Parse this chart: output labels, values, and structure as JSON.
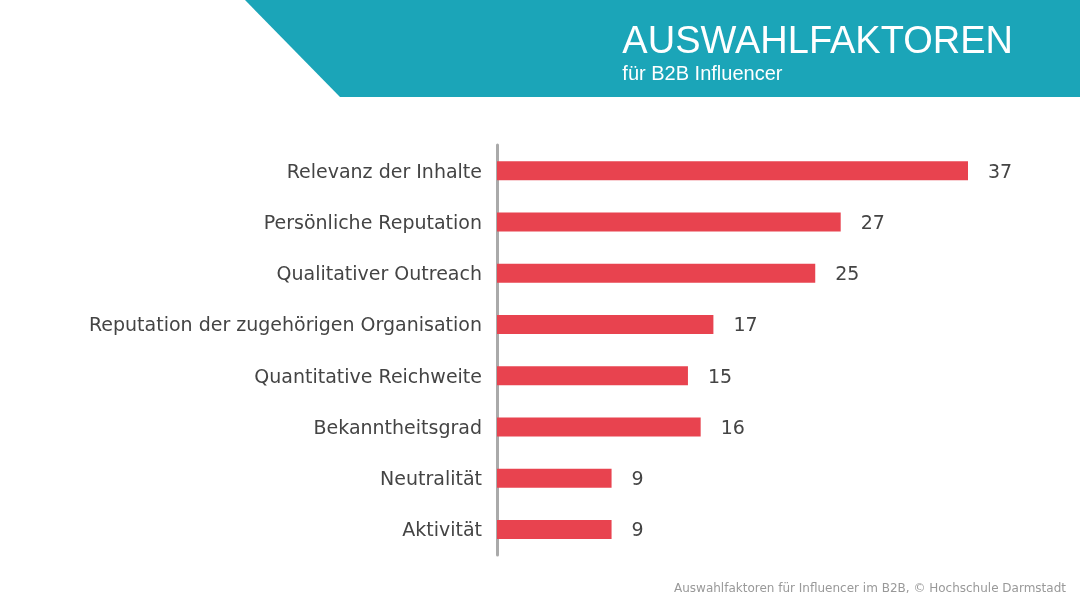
{
  "chart_data": {
    "type": "bar",
    "orientation": "horizontal",
    "title": "AUSWAHLFAKTOREN",
    "subtitle": "für B2B Influencer",
    "categories": [
      "Relevanz der Inhalte",
      "Persönliche Reputation",
      "Qualitativer Outreach",
      "Reputation der zugehörigen Organisation",
      "Quantitative Reichweite",
      "Bekanntheitsgrad",
      "Neutralität",
      "Aktivität"
    ],
    "values": [
      37,
      27,
      25,
      17,
      15,
      16,
      9,
      9
    ],
    "color": "#e8434f",
    "data_labels": true,
    "tick_labels": "y",
    "annotations": [
      "Auswahlfaktoren für Influencer im B2B, © Hochschule Darmstadt"
    ]
  }
}
